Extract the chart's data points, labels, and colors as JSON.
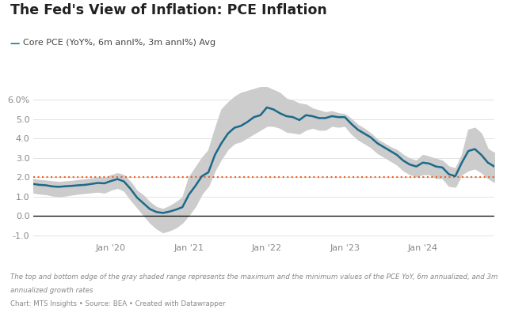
{
  "title": "The Fed's View of Inflation: PCE Inflation",
  "legend_label": "Core PCE (YoY%, 6m annl%, 3m annl%) Avg",
  "footnote1": "The top and bottom edge of the gray shaded range represents the maximum and the minimum values of the PCE YoY, 6m annualized, and 3m",
  "footnote2": "annualized growth rates",
  "source": "Chart: MTS Insights • Source: BEA • Created with Datawrapper",
  "target_line": 2.0,
  "ylim": [
    -1.3,
    7.0
  ],
  "yticks": [
    -1.0,
    0.0,
    1.0,
    2.0,
    3.0,
    4.0,
    5.0,
    6.0
  ],
  "ytick_labels": [
    "-1.0",
    "0.0",
    "1.0",
    "2.0",
    "3.0",
    "4.0",
    "5.0",
    "6.0%"
  ],
  "line_color": "#1b6a8a",
  "band_color": "#cccccc",
  "target_color": "#e8622a",
  "background_color": "#ffffff",
  "line_width": 1.8,
  "avg": [
    1.65,
    1.6,
    1.58,
    1.52,
    1.5,
    1.53,
    1.55,
    1.58,
    1.6,
    1.65,
    1.7,
    1.68,
    1.8,
    1.9,
    1.78,
    1.4,
    0.95,
    0.65,
    0.35,
    0.2,
    0.15,
    0.22,
    0.32,
    0.45,
    1.1,
    1.55,
    2.05,
    2.25,
    3.15,
    3.75,
    4.25,
    4.55,
    4.65,
    4.85,
    5.1,
    5.2,
    5.6,
    5.5,
    5.3,
    5.15,
    5.1,
    4.95,
    5.2,
    5.15,
    5.05,
    5.05,
    5.15,
    5.1,
    5.1,
    4.75,
    4.45,
    4.25,
    4.05,
    3.75,
    3.55,
    3.35,
    3.15,
    2.85,
    2.65,
    2.55,
    2.75,
    2.7,
    2.55,
    2.5,
    2.15,
    2.05,
    2.75,
    3.35,
    3.45,
    3.15,
    2.75,
    2.55
  ],
  "upper": [
    1.9,
    1.85,
    1.82,
    1.78,
    1.75,
    1.78,
    1.8,
    1.85,
    1.88,
    1.93,
    1.97,
    1.95,
    2.1,
    2.2,
    2.1,
    1.75,
    1.3,
    1.05,
    0.7,
    0.45,
    0.35,
    0.5,
    0.7,
    0.95,
    2.0,
    2.5,
    3.0,
    3.4,
    4.5,
    5.5,
    5.85,
    6.15,
    6.35,
    6.45,
    6.55,
    6.65,
    6.65,
    6.5,
    6.35,
    6.05,
    5.95,
    5.8,
    5.75,
    5.55,
    5.45,
    5.35,
    5.4,
    5.3,
    5.25,
    5.0,
    4.7,
    4.5,
    4.25,
    3.95,
    3.75,
    3.55,
    3.4,
    3.15,
    2.95,
    2.85,
    3.15,
    3.05,
    2.95,
    2.85,
    2.55,
    2.45,
    3.15,
    4.45,
    4.55,
    4.25,
    3.45,
    3.25
  ],
  "lower": [
    1.2,
    1.15,
    1.12,
    1.05,
    1.0,
    1.05,
    1.1,
    1.15,
    1.18,
    1.22,
    1.25,
    1.2,
    1.35,
    1.45,
    1.3,
    0.85,
    0.45,
    0.05,
    -0.35,
    -0.65,
    -0.85,
    -0.75,
    -0.6,
    -0.35,
    0.05,
    0.5,
    1.15,
    1.55,
    2.35,
    2.95,
    3.45,
    3.75,
    3.85,
    4.05,
    4.25,
    4.45,
    4.65,
    4.65,
    4.55,
    4.35,
    4.3,
    4.25,
    4.45,
    4.55,
    4.45,
    4.45,
    4.65,
    4.6,
    4.65,
    4.25,
    3.95,
    3.75,
    3.55,
    3.25,
    3.05,
    2.85,
    2.65,
    2.35,
    2.15,
    2.05,
    2.15,
    2.15,
    1.95,
    1.95,
    1.55,
    1.5,
    2.15,
    2.35,
    2.45,
    2.25,
    1.95,
    1.75
  ],
  "xtick_positions": [
    12,
    24,
    36,
    48,
    60
  ],
  "xtick_labels": [
    "Jan '20",
    "Jan '21",
    "Jan '22",
    "Jan '23",
    "Jan '24"
  ]
}
